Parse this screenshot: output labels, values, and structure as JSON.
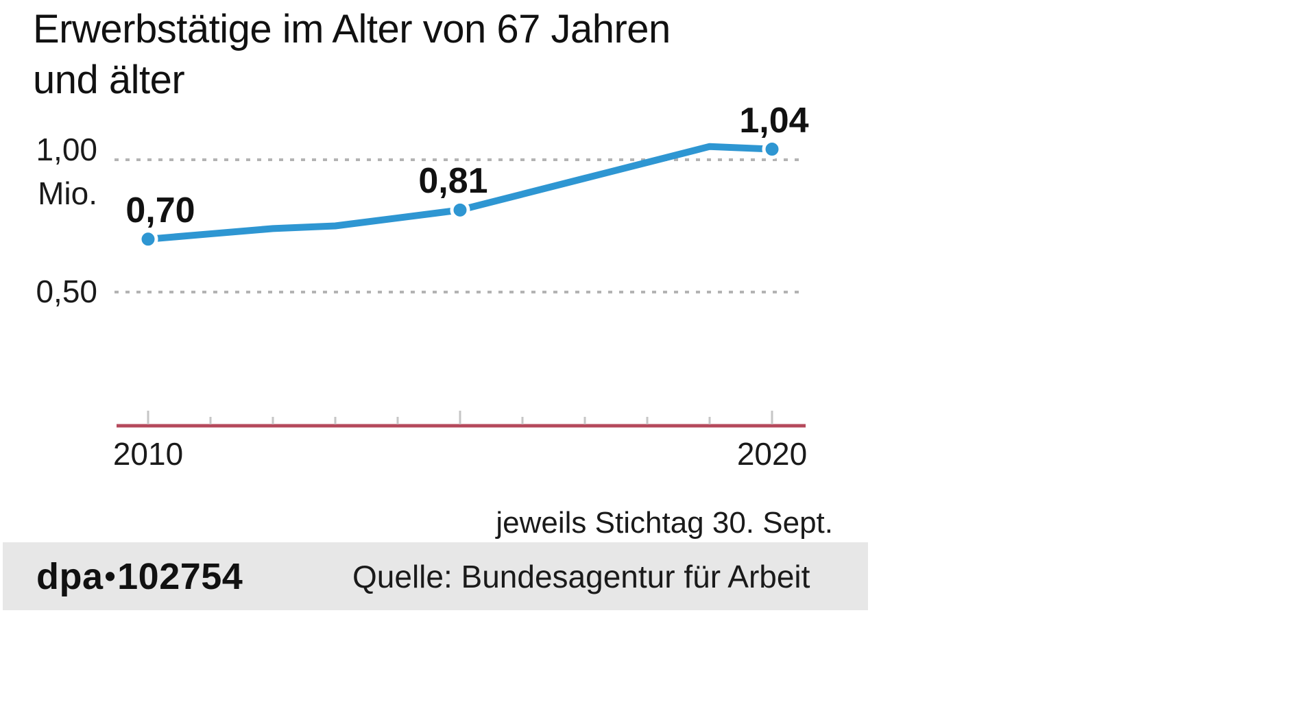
{
  "title": {
    "line1": "Erwerbstätige im Alter von 67 Jahren",
    "line2": "und älter"
  },
  "y_axis": {
    "label_top": "1,00",
    "unit": "Mio.",
    "label_mid": "0,50"
  },
  "x_axis": {
    "label_left": "2010",
    "label_right": "2020"
  },
  "caption": "jeweils Stichtag 30. Sept.",
  "footer": {
    "agency": "dpa",
    "separator": "•",
    "graphic_number": "102754",
    "source": "Quelle: Bundesagentur für Arbeit"
  },
  "colors": {
    "line": "#2e96d2",
    "dot": "#2e96d2",
    "dot_ring": "#ffffff",
    "axis": "#b5495c",
    "tick": "#c6c6c6",
    "grid": "#b3b3b3",
    "footer_bg": "#e7e7e7",
    "text": "#1a1a1a"
  },
  "chart_data": {
    "type": "line",
    "title": "Erwerbstätige im Alter von 67 Jahren und älter",
    "ylabel": "Mio.",
    "x": [
      2010,
      2011,
      2012,
      2013,
      2014,
      2015,
      2016,
      2017,
      2018,
      2019,
      2020
    ],
    "values": [
      0.7,
      0.72,
      0.74,
      0.75,
      0.78,
      0.81,
      0.87,
      0.93,
      0.99,
      1.05,
      1.04
    ],
    "series_unit": "Mio.",
    "ylim": [
      0.3,
      1.25
    ],
    "gridlines": [
      1.0,
      0.5
    ],
    "grid_style": "dashed",
    "legend": "none",
    "labeled_points": [
      {
        "year": 2010,
        "label": "0,70"
      },
      {
        "year": 2015,
        "label": "0,81"
      },
      {
        "year": 2020,
        "label": "1,04"
      }
    ],
    "note": "jeweils Stichtag 30. Sept.",
    "source": "Quelle: Bundesagentur für Arbeit"
  }
}
